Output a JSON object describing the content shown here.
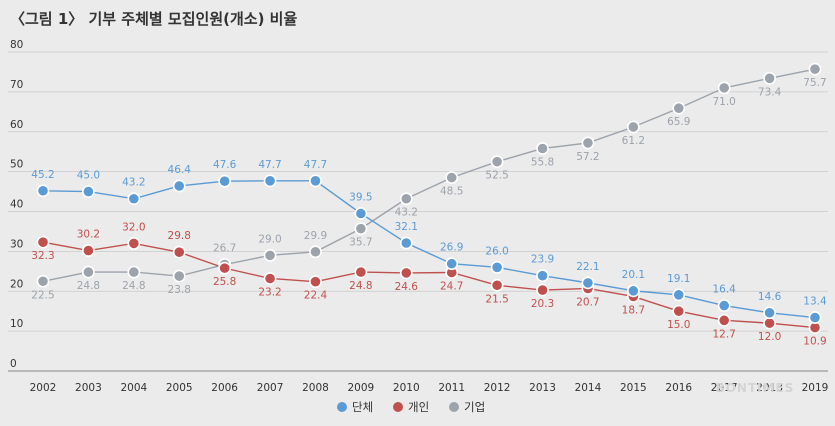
{
  "title": "〈그림 1〉 기부 주체별 모집인원(개소) 비율",
  "watermark": "BONTIMES",
  "chart_data": {
    "type": "line",
    "title": "〈그림 1〉 기부 주체별 모집인원(개소) 비율",
    "x": [
      "2002",
      "2003",
      "2004",
      "2005",
      "2006",
      "2007",
      "2008",
      "2009",
      "2010",
      "2011",
      "2012",
      "2013",
      "2014",
      "2015",
      "2016",
      "2017",
      "2018",
      "2019"
    ],
    "ylim": [
      0,
      80
    ],
    "yticks": [
      0,
      10,
      20,
      30,
      40,
      50,
      60,
      70,
      80
    ],
    "grid": true,
    "legend_position": "bottom",
    "series": [
      {
        "name": "단체",
        "color": "#5b9bd5",
        "values": [
          45.2,
          45.0,
          43.2,
          46.4,
          47.6,
          47.7,
          47.7,
          39.5,
          32.1,
          26.9,
          26.0,
          23.9,
          22.1,
          20.1,
          19.1,
          16.4,
          14.6,
          13.4
        ],
        "labels": [
          "45.2",
          "45.0",
          "43.2",
          "46.4",
          "47.6",
          "47.7",
          "47.7",
          "39.5",
          "32.1",
          "26.9",
          "26.0",
          "23.9",
          "22.1",
          "20.1",
          "19.1",
          "16.4",
          "14.6",
          "13.4"
        ]
      },
      {
        "name": "개인",
        "color": "#c0504d",
        "values": [
          32.3,
          30.2,
          32.0,
          29.8,
          25.8,
          23.2,
          22.4,
          24.8,
          24.6,
          24.7,
          21.5,
          20.3,
          20.7,
          18.7,
          15.0,
          12.7,
          12.0,
          10.9
        ],
        "labels": [
          "32.3",
          "30.2",
          "32.0",
          "29.8",
          "25.8",
          "23.2",
          "22.4",
          "24.8",
          "24.6",
          "24.7",
          "21.5",
          "20.3",
          "20.7",
          "18.7",
          "15.0",
          "12.7",
          "12.0",
          "10.9"
        ]
      },
      {
        "name": "기업",
        "color": "#9da3ab",
        "values": [
          22.5,
          24.8,
          24.8,
          23.8,
          26.7,
          29.0,
          29.9,
          35.7,
          43.2,
          48.5,
          52.5,
          55.8,
          57.2,
          61.2,
          65.9,
          71.0,
          73.4,
          75.7
        ],
        "labels": [
          "22.5",
          "24.8",
          "24.8",
          "23.8",
          "26.7",
          "29.0",
          "29.9",
          "35.7",
          "43.2",
          "48.5",
          "52.5",
          "55.8",
          "57.2",
          "61.2",
          "65.9",
          "71.0",
          "73.4",
          "75.7"
        ]
      }
    ]
  }
}
